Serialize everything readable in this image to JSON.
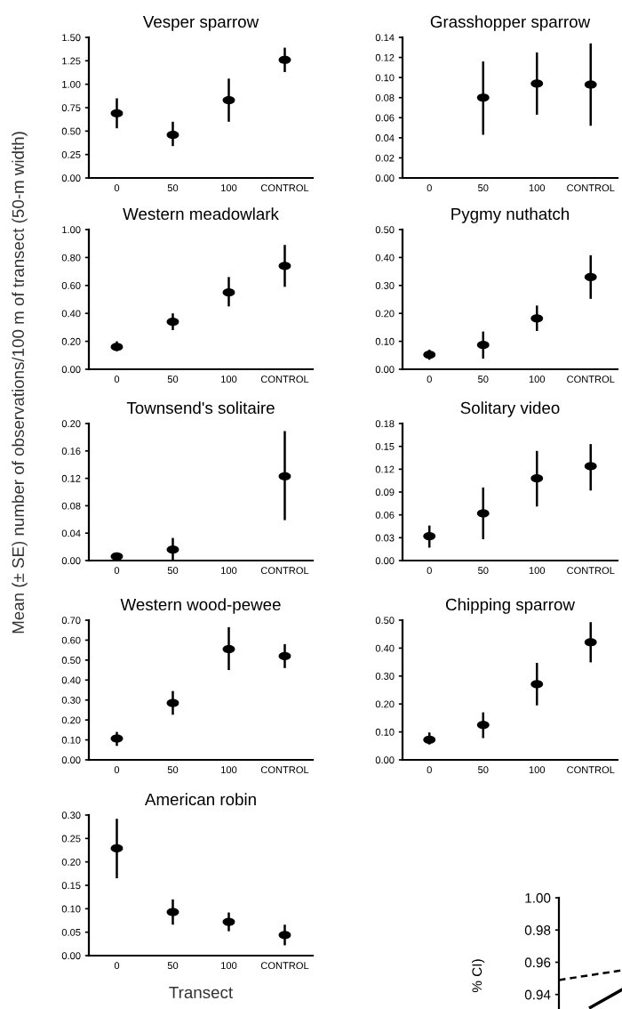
{
  "chart_data": [
    {
      "type": "scatter",
      "title": "Vesper sparrow",
      "ylabel": "Mean (± SE) number of observations/100 m of transect (50-m width)",
      "categories": [
        "0",
        "50",
        "100",
        "CONTROL"
      ],
      "series": [
        {
          "color": "#000000",
          "values": [
            0.69,
            0.46,
            0.83,
            1.26
          ],
          "errors": [
            [
              0.53,
              0.85
            ],
            [
              0.34,
              0.6
            ],
            [
              0.6,
              1.06
            ],
            [
              1.13,
              1.39
            ]
          ]
        }
      ],
      "ylim": [
        0,
        1.5
      ],
      "yticks": [
        {
          "value": 0,
          "label": "0.00"
        },
        {
          "value": 0.25,
          "label": "0.25"
        },
        {
          "value": 0.5,
          "label": "0.50"
        },
        {
          "value": 0.75,
          "label": "0.75"
        },
        {
          "value": 1.0,
          "label": "1.00"
        },
        {
          "value": 1.25,
          "label": "1.25"
        },
        {
          "value": 1.5,
          "label": "1.50"
        }
      ],
      "marker": "circle"
    },
    {
      "type": "scatter",
      "title": "Grasshopper sparrow",
      "categories": [
        "0",
        "50",
        "100",
        "CONTROL"
      ],
      "series": [
        {
          "color": "#000000",
          "values": [
            null,
            0.08,
            0.094,
            0.093
          ],
          "errors": [
            null,
            [
              0.043,
              0.116
            ],
            [
              0.063,
              0.125
            ],
            [
              0.052,
              0.134
            ]
          ]
        }
      ],
      "ylim": [
        0,
        0.14
      ],
      "yticks": [
        {
          "value": 0,
          "label": "0.00"
        },
        {
          "value": 0.02,
          "label": "0.02"
        },
        {
          "value": 0.04,
          "label": "0.04"
        },
        {
          "value": 0.06,
          "label": "0.06"
        },
        {
          "value": 0.08,
          "label": "0.08"
        },
        {
          "value": 0.1,
          "label": "0.10"
        },
        {
          "value": 0.12,
          "label": "0.12"
        },
        {
          "value": 0.14,
          "label": "0.14"
        }
      ],
      "marker": "circle"
    },
    {
      "type": "scatter",
      "title": "Western meadowlark",
      "categories": [
        "0",
        "50",
        "100",
        "CONTROL"
      ],
      "series": [
        {
          "color": "#000000",
          "values": [
            0.16,
            0.34,
            0.55,
            0.74
          ],
          "errors": [
            [
              0.13,
              0.2
            ],
            [
              0.28,
              0.4
            ],
            [
              0.45,
              0.66
            ],
            [
              0.59,
              0.89
            ]
          ]
        }
      ],
      "ylim": [
        0,
        1.0
      ],
      "yticks": [
        {
          "value": 0,
          "label": "0.00"
        },
        {
          "value": 0.2,
          "label": "0.20"
        },
        {
          "value": 0.4,
          "label": "0.40"
        },
        {
          "value": 0.6,
          "label": "0.60"
        },
        {
          "value": 0.8,
          "label": "0.80"
        },
        {
          "value": 1.0,
          "label": "1.00"
        }
      ],
      "marker": "circle"
    },
    {
      "type": "scatter",
      "title": "Pygmy nuthatch",
      "categories": [
        "0",
        "50",
        "100",
        "CONTROL"
      ],
      "series": [
        {
          "color": "#000000",
          "values": [
            0.052,
            0.087,
            0.182,
            0.33
          ],
          "errors": [
            [
              0.034,
              0.07
            ],
            [
              0.038,
              0.135
            ],
            [
              0.137,
              0.228
            ],
            [
              0.252,
              0.408
            ]
          ]
        }
      ],
      "ylim": [
        0,
        0.5
      ],
      "yticks": [
        {
          "value": 0,
          "label": "0.00"
        },
        {
          "value": 0.1,
          "label": "0.10"
        },
        {
          "value": 0.2,
          "label": "0.20"
        },
        {
          "value": 0.3,
          "label": "0.30"
        },
        {
          "value": 0.4,
          "label": "0.40"
        },
        {
          "value": 0.5,
          "label": "0.50"
        }
      ],
      "marker": "circle"
    },
    {
      "type": "scatter",
      "title": "Townsend's solitaire",
      "categories": [
        "0",
        "50",
        "100",
        "CONTROL"
      ],
      "series": [
        {
          "color": "#000000",
          "values": [
            0.006,
            0.016,
            null,
            0.123
          ],
          "errors": [
            null,
            [
              0.0,
              0.033
            ],
            null,
            [
              0.059,
              0.189
            ]
          ]
        }
      ],
      "ylim": [
        0,
        0.2
      ],
      "yticks": [
        {
          "value": 0,
          "label": "0.00"
        },
        {
          "value": 0.04,
          "label": "0.04"
        },
        {
          "value": 0.08,
          "label": "0.08"
        },
        {
          "value": 0.12,
          "label": "0.12"
        },
        {
          "value": 0.16,
          "label": "0.16"
        },
        {
          "value": 0.2,
          "label": "0.20"
        }
      ],
      "marker": "circle"
    },
    {
      "type": "scatter",
      "title": "Solitary video",
      "categories": [
        "0",
        "50",
        "100",
        "CONTROL"
      ],
      "series": [
        {
          "color": "#000000",
          "values": [
            0.032,
            0.062,
            0.108,
            0.124
          ],
          "errors": [
            [
              0.017,
              0.046
            ],
            [
              0.028,
              0.096
            ],
            [
              0.071,
              0.144
            ],
            [
              0.092,
              0.153
            ]
          ]
        }
      ],
      "ylim": [
        0,
        0.18
      ],
      "yticks": [
        {
          "value": 0,
          "label": "0.00"
        },
        {
          "value": 0.03,
          "label": "0.03"
        },
        {
          "value": 0.06,
          "label": "0.06"
        },
        {
          "value": 0.09,
          "label": "0.09"
        },
        {
          "value": 0.12,
          "label": "0.12"
        },
        {
          "value": 0.15,
          "label": "0.15"
        },
        {
          "value": 0.18,
          "label": "0.18"
        }
      ],
      "marker": "circle"
    },
    {
      "type": "scatter",
      "title": "Western wood-pewee",
      "categories": [
        "0",
        "50",
        "100",
        "CONTROL"
      ],
      "series": [
        {
          "color": "#000000",
          "values": [
            0.107,
            0.285,
            0.555,
            0.52
          ],
          "errors": [
            [
              0.07,
              0.14
            ],
            [
              0.226,
              0.345
            ],
            [
              0.45,
              0.665
            ],
            [
              0.46,
              0.58
            ]
          ]
        }
      ],
      "ylim": [
        0,
        0.7
      ],
      "yticks": [
        {
          "value": 0,
          "label": "0.00"
        },
        {
          "value": 0.1,
          "label": "0.10"
        },
        {
          "value": 0.2,
          "label": "0.20"
        },
        {
          "value": 0.3,
          "label": "0.30"
        },
        {
          "value": 0.4,
          "label": "0.40"
        },
        {
          "value": 0.5,
          "label": "0.50"
        },
        {
          "value": 0.6,
          "label": "0.60"
        },
        {
          "value": 0.7,
          "label": "0.70"
        }
      ],
      "marker": "circle"
    },
    {
      "type": "scatter",
      "title": "Chipping sparrow",
      "categories": [
        "0",
        "50",
        "100",
        "CONTROL"
      ],
      "series": [
        {
          "color": "#000000",
          "values": [
            0.072,
            0.125,
            0.271,
            0.421
          ],
          "errors": [
            [
              0.055,
              0.098
            ],
            [
              0.078,
              0.17
            ],
            [
              0.195,
              0.347
            ],
            [
              0.349,
              0.493
            ]
          ]
        }
      ],
      "ylim": [
        0,
        0.5
      ],
      "yticks": [
        {
          "value": 0,
          "label": "0.00"
        },
        {
          "value": 0.1,
          "label": "0.10"
        },
        {
          "value": 0.2,
          "label": "0.20"
        },
        {
          "value": 0.3,
          "label": "0.30"
        },
        {
          "value": 0.4,
          "label": "0.40"
        },
        {
          "value": 0.5,
          "label": "0.50"
        }
      ],
      "marker": "circle"
    },
    {
      "type": "scatter",
      "title": "American robin",
      "xlabel": "Transect",
      "categories": [
        "0",
        "50",
        "100",
        "CONTROL"
      ],
      "series": [
        {
          "color": "#000000",
          "values": [
            0.229,
            0.093,
            0.072,
            0.044
          ],
          "errors": [
            [
              0.165,
              0.292
            ],
            [
              0.066,
              0.12
            ],
            [
              0.052,
              0.092
            ],
            [
              0.022,
              0.066
            ]
          ]
        }
      ],
      "ylim": [
        0,
        0.3
      ],
      "yticks": [
        {
          "value": 0,
          "label": "0.00"
        },
        {
          "value": 0.05,
          "label": "0.05"
        },
        {
          "value": 0.1,
          "label": "0.10"
        },
        {
          "value": 0.15,
          "label": "0.15"
        },
        {
          "value": 0.2,
          "label": "0.20"
        },
        {
          "value": 0.25,
          "label": "0.25"
        },
        {
          "value": 0.3,
          "label": "0.30"
        }
      ],
      "marker": "circle"
    },
    {
      "type": "line",
      "ylabel": "% CI)",
      "tick_labels": "y",
      "categories": [
        null,
        null,
        null
      ],
      "ylim": [
        0.931,
        1.0
      ],
      "yticks": [
        {
          "value": 0.94,
          "label": "0.94"
        },
        {
          "value": 0.96,
          "label": "0.96"
        },
        {
          "value": 0.98,
          "label": "0.98"
        },
        {
          "value": 1.0,
          "label": "1.00"
        }
      ],
      "series": [
        {
          "color": "#000000",
          "values": [
            0.949,
            0.952,
            0.955
          ],
          "line_style": "dashed"
        },
        {
          "color": "#000000",
          "values": [
            null,
            0.932,
            0.943
          ],
          "line_style": "solid"
        }
      ]
    }
  ]
}
